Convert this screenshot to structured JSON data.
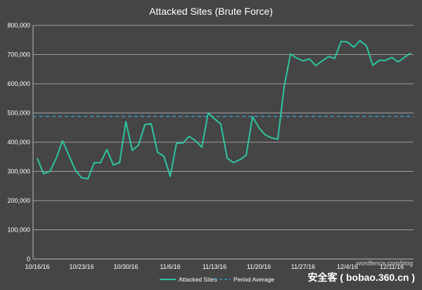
{
  "chart_data": {
    "type": "line",
    "title": "Attacked Sites (Brute Force)",
    "xlabel": "",
    "ylabel": "",
    "ylim": [
      0,
      800000
    ],
    "y_ticks": [
      0,
      100000,
      200000,
      300000,
      400000,
      500000,
      600000,
      700000,
      800000
    ],
    "y_tick_labels": [
      "0",
      "100,000",
      "200,000",
      "300,000",
      "400,000",
      "500,000",
      "600,000",
      "700,000",
      "800,000"
    ],
    "x_tick_labels": [
      "10/16/16",
      "10/23/16",
      "10/30/16",
      "11/6/16",
      "11/13/16",
      "11/20/16",
      "11/27/16",
      "12/4/16",
      "12/11/16"
    ],
    "x_tick_day_index": [
      0,
      7,
      14,
      21,
      28,
      35,
      42,
      49,
      56
    ],
    "grid": true,
    "legend_position": "bottom",
    "series": [
      {
        "name": "Attacked Sites",
        "color": "#2ec4a0",
        "values": [
          345000,
          292000,
          300000,
          345000,
          405000,
          355000,
          305000,
          278000,
          275000,
          330000,
          330000,
          375000,
          322000,
          330000,
          470000,
          372000,
          390000,
          460000,
          463000,
          365000,
          352000,
          283000,
          397000,
          397000,
          420000,
          405000,
          383000,
          500000,
          480000,
          462000,
          345000,
          330000,
          340000,
          355000,
          487000,
          450000,
          425000,
          415000,
          410000,
          590000,
          702000,
          688000,
          678000,
          685000,
          662000,
          678000,
          693000,
          687000,
          745000,
          743000,
          725000,
          748000,
          730000,
          663000,
          680000,
          680000,
          690000,
          675000,
          690000,
          705000
        ]
      },
      {
        "name": "Period Average",
        "color": "#3399cc",
        "style": "dashed",
        "values": [
          488000
        ]
      }
    ]
  },
  "watermark": "wordfence.com/blog",
  "brand_text": "安全客 ( bobao.360.cn )"
}
